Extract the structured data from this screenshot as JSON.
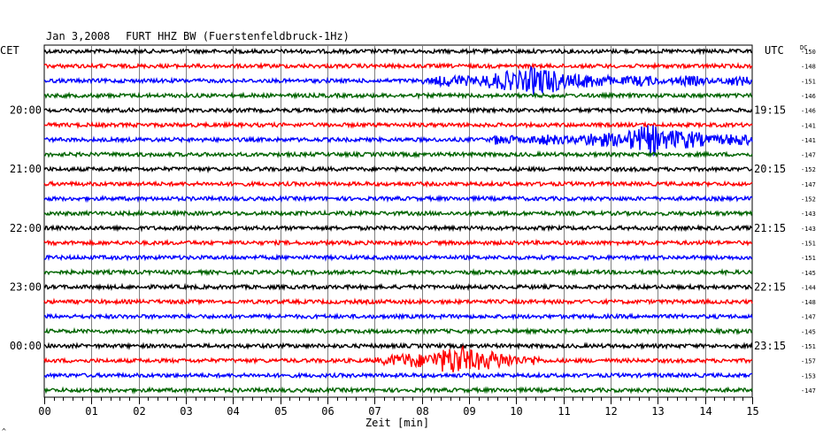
{
  "header": {
    "date": "Jan 3,2008",
    "station": "FURT HHZ BW (Fuerstenfeldbruck-1Hz)"
  },
  "left_timezone": "CET",
  "right_timezone": "UTC",
  "dc_label": "DC",
  "chart_data": {
    "type": "helicorder",
    "xlabel": "Zeit [min]",
    "xlim": [
      0,
      15
    ],
    "x_ticks": [
      "00",
      "01",
      "02",
      "03",
      "04",
      "05",
      "06",
      "07",
      "08",
      "09",
      "10",
      "11",
      "12",
      "13",
      "14",
      "15"
    ],
    "trace_colors": [
      "#000000",
      "#ff0000",
      "#0000ff",
      "#006400"
    ],
    "left_hour_labels": [
      "20:00",
      "21:00",
      "22:00",
      "23:00",
      "00:00"
    ],
    "right_hour_labels": [
      "19:15",
      "20:15",
      "21:15",
      "22:15",
      "23:15"
    ],
    "dc_offsets": [
      "-150",
      "-148",
      "-151",
      "-146",
      "-146",
      "-141",
      "-141",
      "-147",
      "-152",
      "-147",
      "-152",
      "-143",
      "-143",
      "-151",
      "-151",
      "-145",
      "-144",
      "-148",
      "-147",
      "-145",
      "-151",
      "-157",
      "-153",
      "-147"
    ],
    "events": [
      {
        "line": 2,
        "minute_start": 8.0,
        "minute_end": 15.0,
        "peak_minute": 10.4,
        "amplitude": "large"
      },
      {
        "line": 6,
        "minute_start": 9.5,
        "minute_end": 15.0,
        "peak_minute": 12.9,
        "amplitude": "large"
      },
      {
        "line": 21,
        "minute_start": 7.0,
        "minute_end": 10.5,
        "peak_minute": 8.8,
        "amplitude": "large"
      }
    ]
  },
  "footer_mark": "^"
}
